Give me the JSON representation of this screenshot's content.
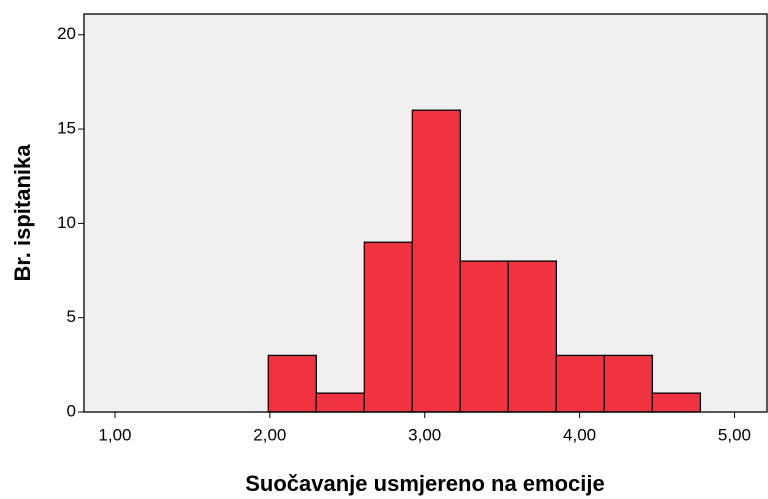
{
  "chart_data": {
    "type": "histogram",
    "xlabel": "Suočavanje usmjereno na emocije",
    "ylabel": "Br. ispitanika",
    "bins": [
      1.99,
      2.3,
      2.61,
      2.92,
      3.23,
      3.54,
      3.85,
      4.16,
      4.47,
      4.78
    ],
    "counts": [
      3,
      1,
      9,
      16,
      8,
      8,
      3,
      3,
      1
    ],
    "color": "#ef3340",
    "xlim": [
      0.8,
      5.21
    ],
    "ylim": [
      0,
      21.1
    ],
    "xticks": [
      {
        "value": 1,
        "label": "1,00"
      },
      {
        "value": 2,
        "label": "2,00"
      },
      {
        "value": 3,
        "label": "3,00"
      },
      {
        "value": 4,
        "label": "4,00"
      },
      {
        "value": 5,
        "label": "5,00"
      }
    ],
    "yticks": [
      0,
      5,
      10,
      15,
      20
    ]
  }
}
